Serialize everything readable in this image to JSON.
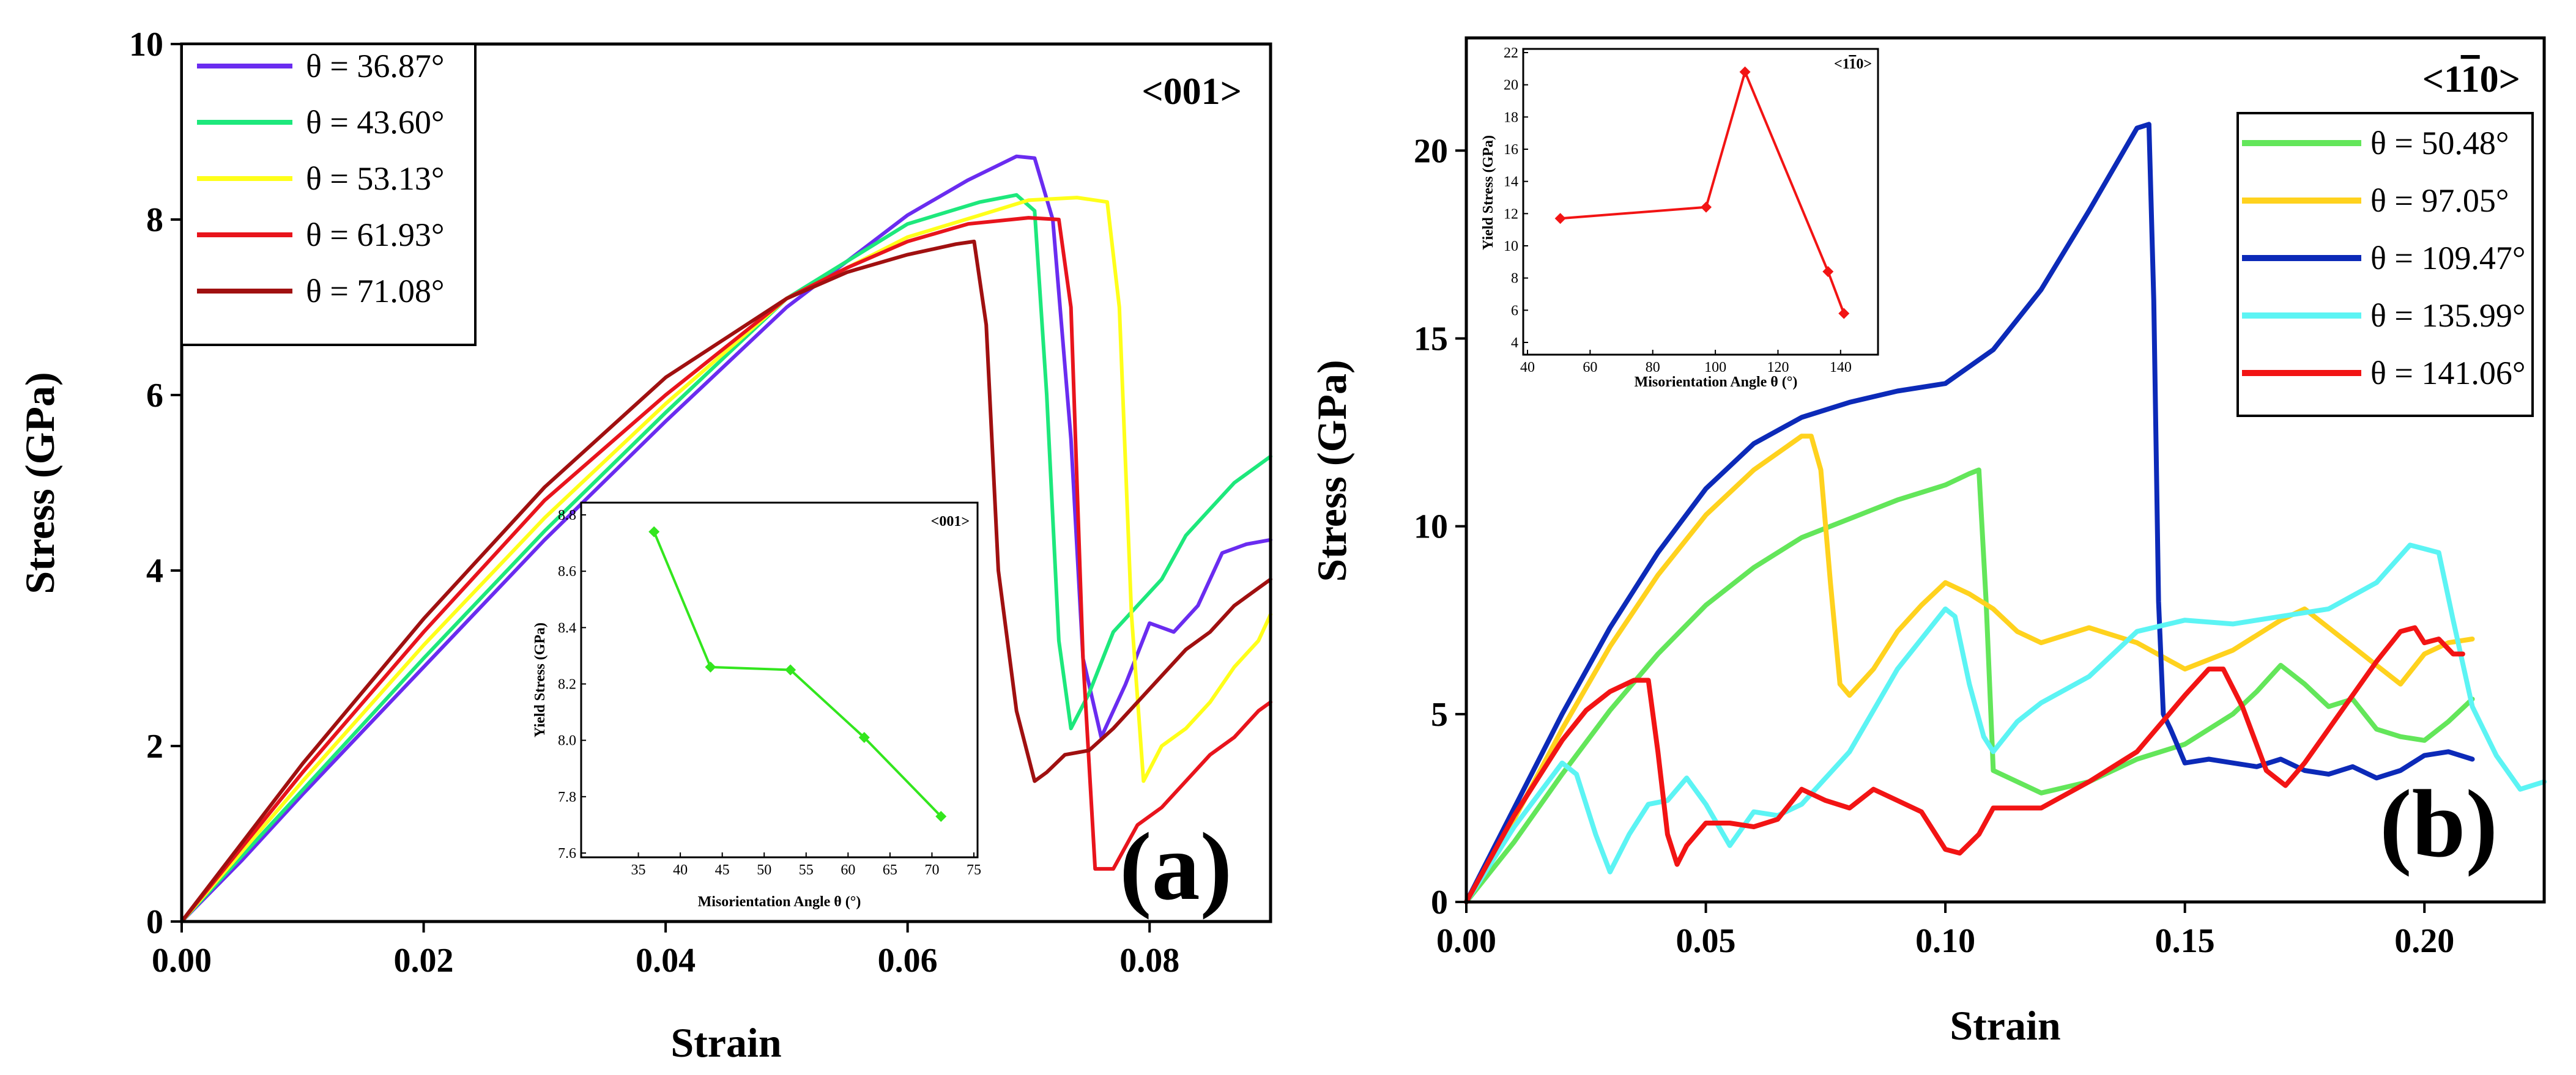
{
  "chart_data": [
    {
      "panel": "(a)",
      "type": "line",
      "tag": "<001>",
      "xlabel": "Strain",
      "ylabel": "Stress (GPa)",
      "xlim": [
        0,
        0.09
      ],
      "ylim": [
        0,
        10
      ],
      "xticks": [
        "0.00",
        "0.02",
        "0.04",
        "0.06",
        "0.08"
      ],
      "yticks": [
        "0",
        "2",
        "4",
        "6",
        "8",
        "10"
      ],
      "legend_position": "top-left",
      "series": [
        {
          "name": "θ = 36.87°",
          "color": "#6a2cf0",
          "x": [
            0,
            0.005,
            0.01,
            0.02,
            0.03,
            0.04,
            0.05,
            0.06,
            0.065,
            0.069,
            0.0705,
            0.072,
            0.0735,
            0.0745,
            0.076,
            0.078,
            0.08,
            0.082,
            0.084,
            0.086,
            0.088,
            0.09
          ],
          "y": [
            0,
            0.7,
            1.45,
            2.9,
            4.35,
            5.7,
            7.0,
            8.05,
            8.45,
            8.72,
            8.7,
            8.0,
            5.5,
            3.0,
            2.1,
            2.7,
            3.4,
            3.3,
            3.6,
            4.2,
            4.3,
            4.35
          ]
        },
        {
          "name": "θ = 43.60°",
          "color": "#1de87c",
          "x": [
            0,
            0.005,
            0.01,
            0.02,
            0.03,
            0.04,
            0.05,
            0.06,
            0.066,
            0.069,
            0.0705,
            0.0715,
            0.0725,
            0.0735,
            0.075,
            0.077,
            0.079,
            0.081,
            0.083,
            0.085,
            0.087,
            0.089,
            0.09
          ],
          "y": [
            0,
            0.75,
            1.5,
            3.0,
            4.45,
            5.8,
            7.1,
            7.95,
            8.2,
            8.28,
            8.1,
            6.0,
            3.2,
            2.2,
            2.6,
            3.3,
            3.6,
            3.9,
            4.4,
            4.7,
            5.0,
            5.2,
            5.3
          ]
        },
        {
          "name": "θ = 53.13°",
          "color": "#ffff1a",
          "x": [
            0,
            0.005,
            0.01,
            0.02,
            0.03,
            0.04,
            0.05,
            0.06,
            0.066,
            0.07,
            0.074,
            0.0765,
            0.0775,
            0.0785,
            0.0795,
            0.081,
            0.083,
            0.085,
            0.087,
            0.089,
            0.09
          ],
          "y": [
            0,
            0.8,
            1.6,
            3.15,
            4.6,
            5.9,
            7.1,
            7.8,
            8.05,
            8.22,
            8.25,
            8.2,
            7.0,
            3.5,
            1.6,
            2.0,
            2.2,
            2.5,
            2.9,
            3.2,
            3.5
          ]
        },
        {
          "name": "θ = 61.93°",
          "color": "#e8141c",
          "x": [
            0,
            0.005,
            0.01,
            0.02,
            0.03,
            0.04,
            0.05,
            0.055,
            0.06,
            0.065,
            0.07,
            0.0725,
            0.0735,
            0.0745,
            0.0755,
            0.077,
            0.079,
            0.081,
            0.083,
            0.085,
            0.087,
            0.089,
            0.09
          ],
          "y": [
            0,
            0.85,
            1.7,
            3.3,
            4.8,
            6.0,
            7.1,
            7.45,
            7.75,
            7.95,
            8.02,
            8.0,
            7.0,
            3.0,
            0.6,
            0.6,
            1.1,
            1.3,
            1.6,
            1.9,
            2.1,
            2.4,
            2.5
          ]
        },
        {
          "name": "θ = 71.08°",
          "color": "#a01010",
          "x": [
            0,
            0.005,
            0.01,
            0.02,
            0.03,
            0.04,
            0.05,
            0.055,
            0.06,
            0.064,
            0.0655,
            0.0665,
            0.0675,
            0.069,
            0.0705,
            0.0715,
            0.073,
            0.075,
            0.077,
            0.079,
            0.081,
            0.083,
            0.085,
            0.087,
            0.089,
            0.09
          ],
          "y": [
            0,
            0.9,
            1.8,
            3.45,
            4.95,
            6.2,
            7.1,
            7.4,
            7.6,
            7.72,
            7.75,
            6.8,
            4.0,
            2.4,
            1.6,
            1.7,
            1.9,
            1.95,
            2.2,
            2.5,
            2.8,
            3.1,
            3.3,
            3.6,
            3.8,
            3.9
          ]
        }
      ],
      "inset": {
        "type": "line",
        "tag": "<001>",
        "xlabel": "Misorientation Angle θ (°)",
        "ylabel": "Yield Stress (GPa)",
        "xlim": [
          30,
          75
        ],
        "ylim": [
          7.6,
          8.8
        ],
        "xticks": [
          "35",
          "40",
          "45",
          "50",
          "55",
          "60",
          "65",
          "70",
          "75"
        ],
        "yticks": [
          "7.6",
          "7.8",
          "8.0",
          "8.2",
          "8.4",
          "8.6",
          "8.8"
        ],
        "color": "#33e61e",
        "x": [
          36.87,
          43.6,
          53.13,
          61.93,
          71.08
        ],
        "y": [
          8.74,
          8.26,
          8.25,
          8.01,
          7.73
        ]
      }
    },
    {
      "panel": "(b)",
      "type": "line",
      "tag": "<1-10>",
      "tag_parts": [
        "<1",
        "1",
        "0>"
      ],
      "xlabel": "Strain",
      "ylabel": "Stress (GPa)",
      "xlim": [
        0,
        0.225
      ],
      "ylim": [
        0,
        23
      ],
      "xticks": [
        "0.00",
        "0.05",
        "0.10",
        "0.15",
        "0.20"
      ],
      "yticks": [
        "0",
        "5",
        "10",
        "15",
        "20"
      ],
      "legend_position": "top-right",
      "series": [
        {
          "name": "θ = 50.48°",
          "color": "#63e65a",
          "x": [
            0,
            0.01,
            0.02,
            0.03,
            0.04,
            0.05,
            0.06,
            0.07,
            0.08,
            0.09,
            0.1,
            0.105,
            0.107,
            0.1085,
            0.11,
            0.115,
            0.12,
            0.13,
            0.14,
            0.15,
            0.16,
            0.165,
            0.17,
            0.175,
            0.18,
            0.185,
            0.19,
            0.195,
            0.2,
            0.205,
            0.21
          ],
          "y": [
            0,
            1.6,
            3.4,
            5.1,
            6.6,
            7.9,
            8.9,
            9.7,
            10.2,
            10.7,
            11.1,
            11.4,
            11.5,
            8.0,
            3.5,
            3.2,
            2.9,
            3.2,
            3.8,
            4.2,
            5.0,
            5.6,
            6.3,
            5.8,
            5.2,
            5.4,
            4.6,
            4.4,
            4.3,
            4.8,
            5.4
          ]
        },
        {
          "name": "θ = 97.05°",
          "color": "#ffd21e",
          "x": [
            0,
            0.01,
            0.02,
            0.03,
            0.04,
            0.05,
            0.06,
            0.07,
            0.072,
            0.074,
            0.076,
            0.078,
            0.08,
            0.085,
            0.09,
            0.095,
            0.1,
            0.105,
            0.11,
            0.115,
            0.12,
            0.13,
            0.14,
            0.15,
            0.16,
            0.17,
            0.175,
            0.18,
            0.185,
            0.19,
            0.195,
            0.2,
            0.205,
            0.21
          ],
          "y": [
            0,
            2.2,
            4.6,
            6.8,
            8.7,
            10.3,
            11.5,
            12.4,
            12.4,
            11.5,
            8.5,
            5.8,
            5.5,
            6.2,
            7.2,
            7.9,
            8.5,
            8.2,
            7.8,
            7.2,
            6.9,
            7.3,
            6.9,
            6.2,
            6.7,
            7.5,
            7.8,
            7.3,
            6.8,
            6.3,
            5.8,
            6.6,
            6.9,
            7.0
          ]
        },
        {
          "name": "θ = 109.47°",
          "color": "#0c2ab8",
          "x": [
            0,
            0.01,
            0.02,
            0.03,
            0.04,
            0.05,
            0.06,
            0.07,
            0.08,
            0.09,
            0.1,
            0.11,
            0.12,
            0.13,
            0.14,
            0.1425,
            0.1435,
            0.1445,
            0.1455,
            0.147,
            0.15,
            0.155,
            0.16,
            0.165,
            0.17,
            0.175,
            0.18,
            0.185,
            0.19,
            0.195,
            0.2,
            0.205,
            0.21
          ],
          "y": [
            0,
            2.5,
            5.0,
            7.3,
            9.3,
            11.0,
            12.2,
            12.9,
            13.3,
            13.6,
            13.8,
            14.7,
            16.3,
            18.4,
            20.6,
            20.7,
            16.0,
            8.0,
            5.0,
            4.6,
            3.7,
            3.8,
            3.7,
            3.6,
            3.8,
            3.5,
            3.4,
            3.6,
            3.3,
            3.5,
            3.9,
            4.0,
            3.8
          ]
        },
        {
          "name": "θ = 135.99°",
          "color": "#5cf4f4",
          "x": [
            0,
            0.01,
            0.02,
            0.023,
            0.027,
            0.03,
            0.034,
            0.038,
            0.042,
            0.046,
            0.05,
            0.055,
            0.06,
            0.065,
            0.07,
            0.075,
            0.08,
            0.09,
            0.1,
            0.102,
            0.105,
            0.108,
            0.11,
            0.115,
            0.12,
            0.13,
            0.14,
            0.15,
            0.16,
            0.17,
            0.18,
            0.19,
            0.197,
            0.2,
            0.203,
            0.206,
            0.21,
            0.215,
            0.22,
            0.225
          ],
          "y": [
            0,
            2.0,
            3.7,
            3.4,
            1.8,
            0.8,
            1.8,
            2.6,
            2.7,
            3.3,
            2.6,
            1.5,
            2.4,
            2.3,
            2.6,
            3.3,
            4.0,
            6.2,
            7.8,
            7.6,
            5.8,
            4.4,
            4.0,
            4.8,
            5.3,
            6.0,
            7.2,
            7.5,
            7.4,
            7.6,
            7.8,
            8.5,
            9.5,
            9.4,
            9.3,
            7.5,
            5.2,
            3.9,
            3.0,
            3.2
          ]
        },
        {
          "name": "θ = 141.06°",
          "color": "#f21414",
          "x": [
            0,
            0.01,
            0.02,
            0.025,
            0.03,
            0.035,
            0.038,
            0.04,
            0.042,
            0.044,
            0.046,
            0.05,
            0.055,
            0.06,
            0.065,
            0.07,
            0.075,
            0.08,
            0.085,
            0.09,
            0.095,
            0.1,
            0.103,
            0.107,
            0.11,
            0.12,
            0.13,
            0.14,
            0.15,
            0.155,
            0.158,
            0.162,
            0.167,
            0.171,
            0.175,
            0.18,
            0.19,
            0.195,
            0.198,
            0.2,
            0.203,
            0.206,
            0.208
          ],
          "y": [
            0,
            2.3,
            4.3,
            5.1,
            5.6,
            5.9,
            5.9,
            4.0,
            1.8,
            1.0,
            1.5,
            2.1,
            2.1,
            2.0,
            2.2,
            3.0,
            2.7,
            2.5,
            3.0,
            2.7,
            2.4,
            1.4,
            1.3,
            1.8,
            2.5,
            2.5,
            3.2,
            4.0,
            5.5,
            6.2,
            6.2,
            5.2,
            3.5,
            3.1,
            3.7,
            4.6,
            6.4,
            7.2,
            7.3,
            6.9,
            7.0,
            6.6,
            6.6
          ]
        }
      ],
      "inset": {
        "type": "line",
        "tag": "<1-10>",
        "tag_parts": [
          "<1",
          "1",
          "0>"
        ],
        "xlabel": "Misorientation Angle θ (°)",
        "ylabel": "Yield Stress (GPa)",
        "xlim": [
          40,
          150
        ],
        "ylim": [
          4,
          22
        ],
        "xticks": [
          "40",
          "60",
          "80",
          "100",
          "120",
          "140"
        ],
        "yticks": [
          "4",
          "6",
          "8",
          "10",
          "12",
          "14",
          "16",
          "18",
          "20",
          "22"
        ],
        "color": "#f21414",
        "x": [
          50.48,
          97.05,
          109.47,
          135.99,
          141.06
        ],
        "y": [
          11.7,
          12.4,
          20.8,
          8.4,
          5.8
        ]
      }
    }
  ]
}
